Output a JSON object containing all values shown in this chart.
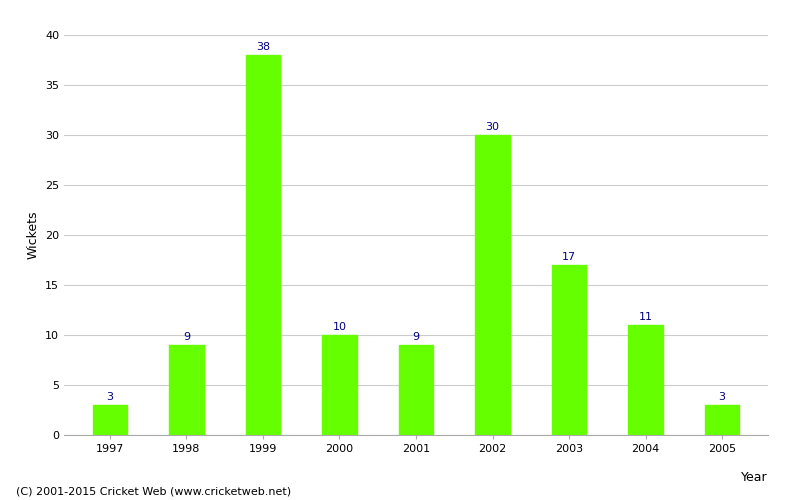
{
  "years": [
    "1997",
    "1998",
    "1999",
    "2000",
    "2001",
    "2002",
    "2003",
    "2004",
    "2005"
  ],
  "values": [
    3,
    9,
    38,
    10,
    9,
    30,
    17,
    11,
    3
  ],
  "bar_color": "#66ff00",
  "bar_edgecolor": "#66ff00",
  "xlabel": "Year",
  "ylabel": "Wickets",
  "ylim": [
    0,
    40
  ],
  "yticks": [
    0,
    5,
    10,
    15,
    20,
    25,
    30,
    35,
    40
  ],
  "label_color": "#000080",
  "label_fontsize": 8,
  "axis_fontsize": 9,
  "tick_fontsize": 8,
  "background_color": "#ffffff",
  "grid_color": "#cccccc",
  "footer_text": "(C) 2001-2015 Cricket Web (www.cricketweb.net)",
  "footer_fontsize": 8,
  "bar_width": 0.45
}
